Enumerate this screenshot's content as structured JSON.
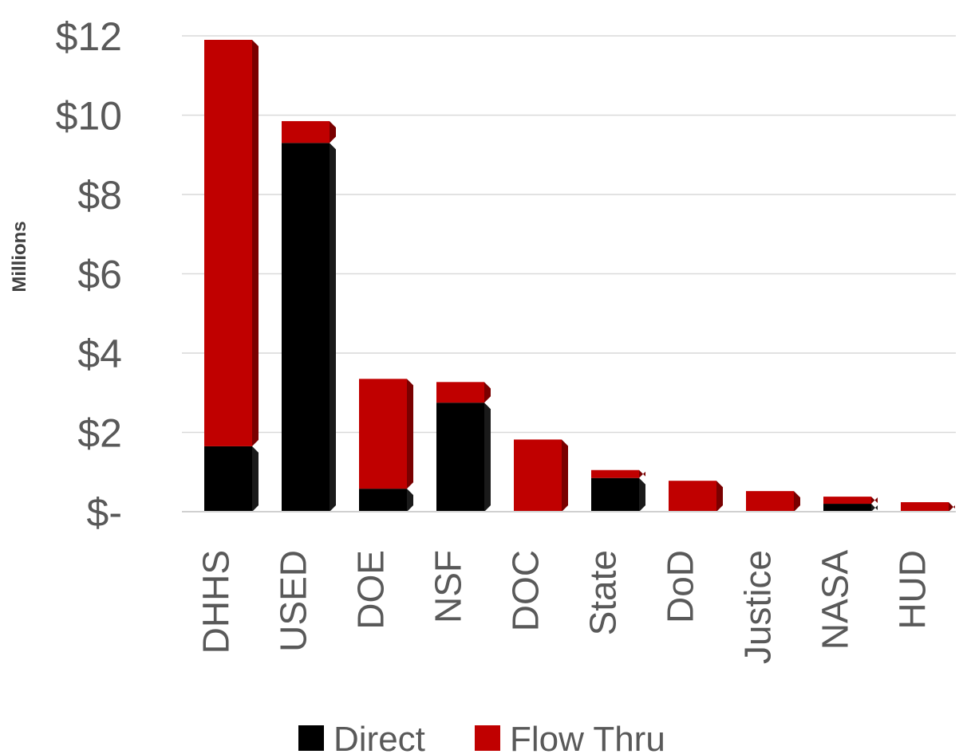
{
  "chart_data": {
    "type": "bar",
    "stacked": true,
    "ylabel": "Millions",
    "xlabel": "",
    "ylim": [
      0,
      12
    ],
    "yticks": [
      0,
      2,
      4,
      6,
      8,
      10,
      12
    ],
    "ytick_labels": [
      "$-",
      "$2",
      "$4",
      "$6",
      "$8",
      "$10",
      "$12"
    ],
    "grid": true,
    "legend_position": "bottom",
    "categories": [
      "DHHS",
      "USED",
      "DOE",
      "NSF",
      "DOC",
      "State",
      "DoD",
      "Justice",
      "NASA",
      "HUD"
    ],
    "series": [
      {
        "name": "Direct",
        "color": "#000000",
        "values": [
          1.65,
          9.3,
          0.58,
          2.75,
          0.0,
          0.85,
          0.0,
          0.0,
          0.2,
          0.0
        ]
      },
      {
        "name": "Flow Thru",
        "color": "#c00000",
        "values": [
          10.25,
          0.55,
          2.77,
          0.52,
          1.82,
          0.2,
          0.78,
          0.52,
          0.18,
          0.24
        ]
      }
    ]
  }
}
